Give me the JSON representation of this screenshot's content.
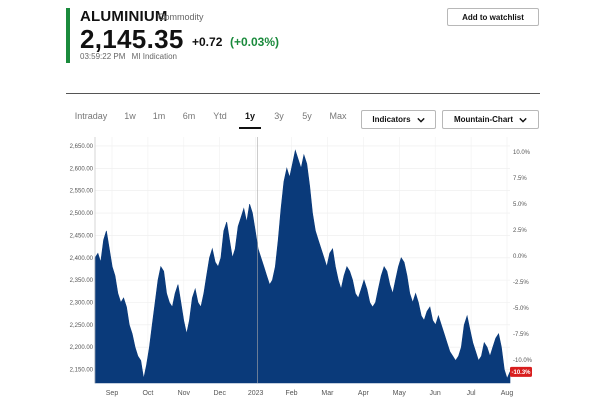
{
  "header": {
    "title": "ALUMINIUM",
    "subtitle": "Commodity",
    "price": "2,145.35",
    "change_abs": "+0.72",
    "change_pct": "(+0.03%)",
    "timestamp": "03:59:22 PM",
    "source": "MI Indication",
    "accent_color": "#1a8a3c"
  },
  "actions": {
    "watchlist_label": "Add to watchlist"
  },
  "tabs": [
    {
      "label": "Intraday",
      "active": false
    },
    {
      "label": "1w",
      "active": false
    },
    {
      "label": "1m",
      "active": false
    },
    {
      "label": "6m",
      "active": false
    },
    {
      "label": "Ytd",
      "active": false
    },
    {
      "label": "1y",
      "active": true
    },
    {
      "label": "3y",
      "active": false
    },
    {
      "label": "5y",
      "active": false
    },
    {
      "label": "Max",
      "active": false
    }
  ],
  "dropdowns": {
    "indicators_label": "Indicators",
    "chart_type_label": "Mountain-Chart",
    "chevron_icon": "chevron-down-icon"
  },
  "chart_data": {
    "type": "area",
    "fill_color": "#0a3a7a",
    "y_left_ticks": [
      "2,650.00",
      "2,600.00",
      "2,550.00",
      "2,500.00",
      "2,450.00",
      "2,400.00",
      "2,350.00",
      "2,300.00",
      "2,250.00",
      "2,200.00",
      "2,150.00"
    ],
    "y_left_values": [
      2650,
      2600,
      2550,
      2500,
      2450,
      2400,
      2350,
      2300,
      2250,
      2200,
      2150
    ],
    "y_right_ticks": [
      "10.0%",
      "7.5%",
      "5.0%",
      "2.5%",
      "0.0%",
      "-2.5%",
      "-5.0%",
      "-7.5%",
      "-10.0%"
    ],
    "y_right_values": [
      10.0,
      7.5,
      5.0,
      2.5,
      0.0,
      -2.5,
      -5.0,
      -7.5,
      -10.0
    ],
    "current_badge": "-10.3%",
    "badge_color": "#d81e1e",
    "x_labels": [
      "Sep",
      "Oct",
      "Nov",
      "Dec",
      "2023",
      "Feb",
      "Mar",
      "Apr",
      "May",
      "Jun",
      "Jul",
      "Aug"
    ],
    "ylim": [
      2120,
      2670
    ],
    "grid": true,
    "points": [
      [
        0,
        2400
      ],
      [
        2,
        2410
      ],
      [
        4,
        2390
      ],
      [
        6,
        2440
      ],
      [
        8,
        2460
      ],
      [
        10,
        2420
      ],
      [
        12,
        2380
      ],
      [
        14,
        2360
      ],
      [
        16,
        2320
      ],
      [
        18,
        2300
      ],
      [
        20,
        2310
      ],
      [
        22,
        2290
      ],
      [
        24,
        2250
      ],
      [
        26,
        2230
      ],
      [
        28,
        2200
      ],
      [
        30,
        2180
      ],
      [
        32,
        2170
      ],
      [
        33,
        2150
      ],
      [
        34,
        2130
      ],
      [
        36,
        2160
      ],
      [
        38,
        2200
      ],
      [
        40,
        2250
      ],
      [
        42,
        2300
      ],
      [
        44,
        2350
      ],
      [
        46,
        2380
      ],
      [
        48,
        2370
      ],
      [
        50,
        2320
      ],
      [
        52,
        2300
      ],
      [
        54,
        2290
      ],
      [
        56,
        2320
      ],
      [
        58,
        2340
      ],
      [
        60,
        2300
      ],
      [
        62,
        2260
      ],
      [
        64,
        2230
      ],
      [
        66,
        2260
      ],
      [
        68,
        2310
      ],
      [
        70,
        2330
      ],
      [
        72,
        2300
      ],
      [
        74,
        2290
      ],
      [
        76,
        2320
      ],
      [
        78,
        2360
      ],
      [
        80,
        2400
      ],
      [
        82,
        2420
      ],
      [
        84,
        2390
      ],
      [
        86,
        2380
      ],
      [
        88,
        2400
      ],
      [
        90,
        2460
      ],
      [
        92,
        2480
      ],
      [
        94,
        2440
      ],
      [
        96,
        2400
      ],
      [
        98,
        2420
      ],
      [
        100,
        2470
      ],
      [
        102,
        2490
      ],
      [
        104,
        2510
      ],
      [
        106,
        2480
      ],
      [
        108,
        2520
      ],
      [
        110,
        2500
      ],
      [
        112,
        2460
      ],
      [
        114,
        2420
      ],
      [
        116,
        2400
      ],
      [
        118,
        2380
      ],
      [
        120,
        2360
      ],
      [
        122,
        2340
      ],
      [
        124,
        2350
      ],
      [
        126,
        2380
      ],
      [
        128,
        2440
      ],
      [
        130,
        2510
      ],
      [
        132,
        2570
      ],
      [
        134,
        2600
      ],
      [
        136,
        2580
      ],
      [
        138,
        2610
      ],
      [
        140,
        2640
      ],
      [
        142,
        2620
      ],
      [
        144,
        2600
      ],
      [
        146,
        2630
      ],
      [
        148,
        2610
      ],
      [
        150,
        2560
      ],
      [
        152,
        2500
      ],
      [
        154,
        2460
      ],
      [
        156,
        2440
      ],
      [
        158,
        2420
      ],
      [
        160,
        2400
      ],
      [
        162,
        2380
      ],
      [
        164,
        2410
      ],
      [
        166,
        2420
      ],
      [
        168,
        2380
      ],
      [
        170,
        2350
      ],
      [
        172,
        2330
      ],
      [
        174,
        2360
      ],
      [
        176,
        2380
      ],
      [
        178,
        2370
      ],
      [
        180,
        2350
      ],
      [
        182,
        2320
      ],
      [
        184,
        2310
      ],
      [
        186,
        2330
      ],
      [
        188,
        2350
      ],
      [
        190,
        2330
      ],
      [
        192,
        2300
      ],
      [
        194,
        2290
      ],
      [
        196,
        2300
      ],
      [
        198,
        2330
      ],
      [
        200,
        2360
      ],
      [
        202,
        2380
      ],
      [
        204,
        2370
      ],
      [
        206,
        2340
      ],
      [
        208,
        2320
      ],
      [
        210,
        2350
      ],
      [
        212,
        2380
      ],
      [
        214,
        2400
      ],
      [
        216,
        2390
      ],
      [
        218,
        2360
      ],
      [
        220,
        2320
      ],
      [
        222,
        2300
      ],
      [
        224,
        2320
      ],
      [
        226,
        2300
      ],
      [
        228,
        2270
      ],
      [
        230,
        2260
      ],
      [
        232,
        2280
      ],
      [
        234,
        2290
      ],
      [
        236,
        2260
      ],
      [
        238,
        2250
      ],
      [
        240,
        2270
      ],
      [
        242,
        2250
      ],
      [
        244,
        2230
      ],
      [
        246,
        2210
      ],
      [
        248,
        2190
      ],
      [
        250,
        2180
      ],
      [
        252,
        2170
      ],
      [
        254,
        2180
      ],
      [
        256,
        2200
      ],
      [
        258,
        2250
      ],
      [
        260,
        2270
      ],
      [
        262,
        2240
      ],
      [
        264,
        2210
      ],
      [
        266,
        2190
      ],
      [
        268,
        2170
      ],
      [
        270,
        2180
      ],
      [
        272,
        2210
      ],
      [
        274,
        2200
      ],
      [
        276,
        2180
      ],
      [
        278,
        2200
      ],
      [
        280,
        2220
      ],
      [
        282,
        2230
      ],
      [
        284,
        2200
      ],
      [
        286,
        2150
      ],
      [
        288,
        2130
      ],
      [
        290,
        2145
      ]
    ]
  }
}
